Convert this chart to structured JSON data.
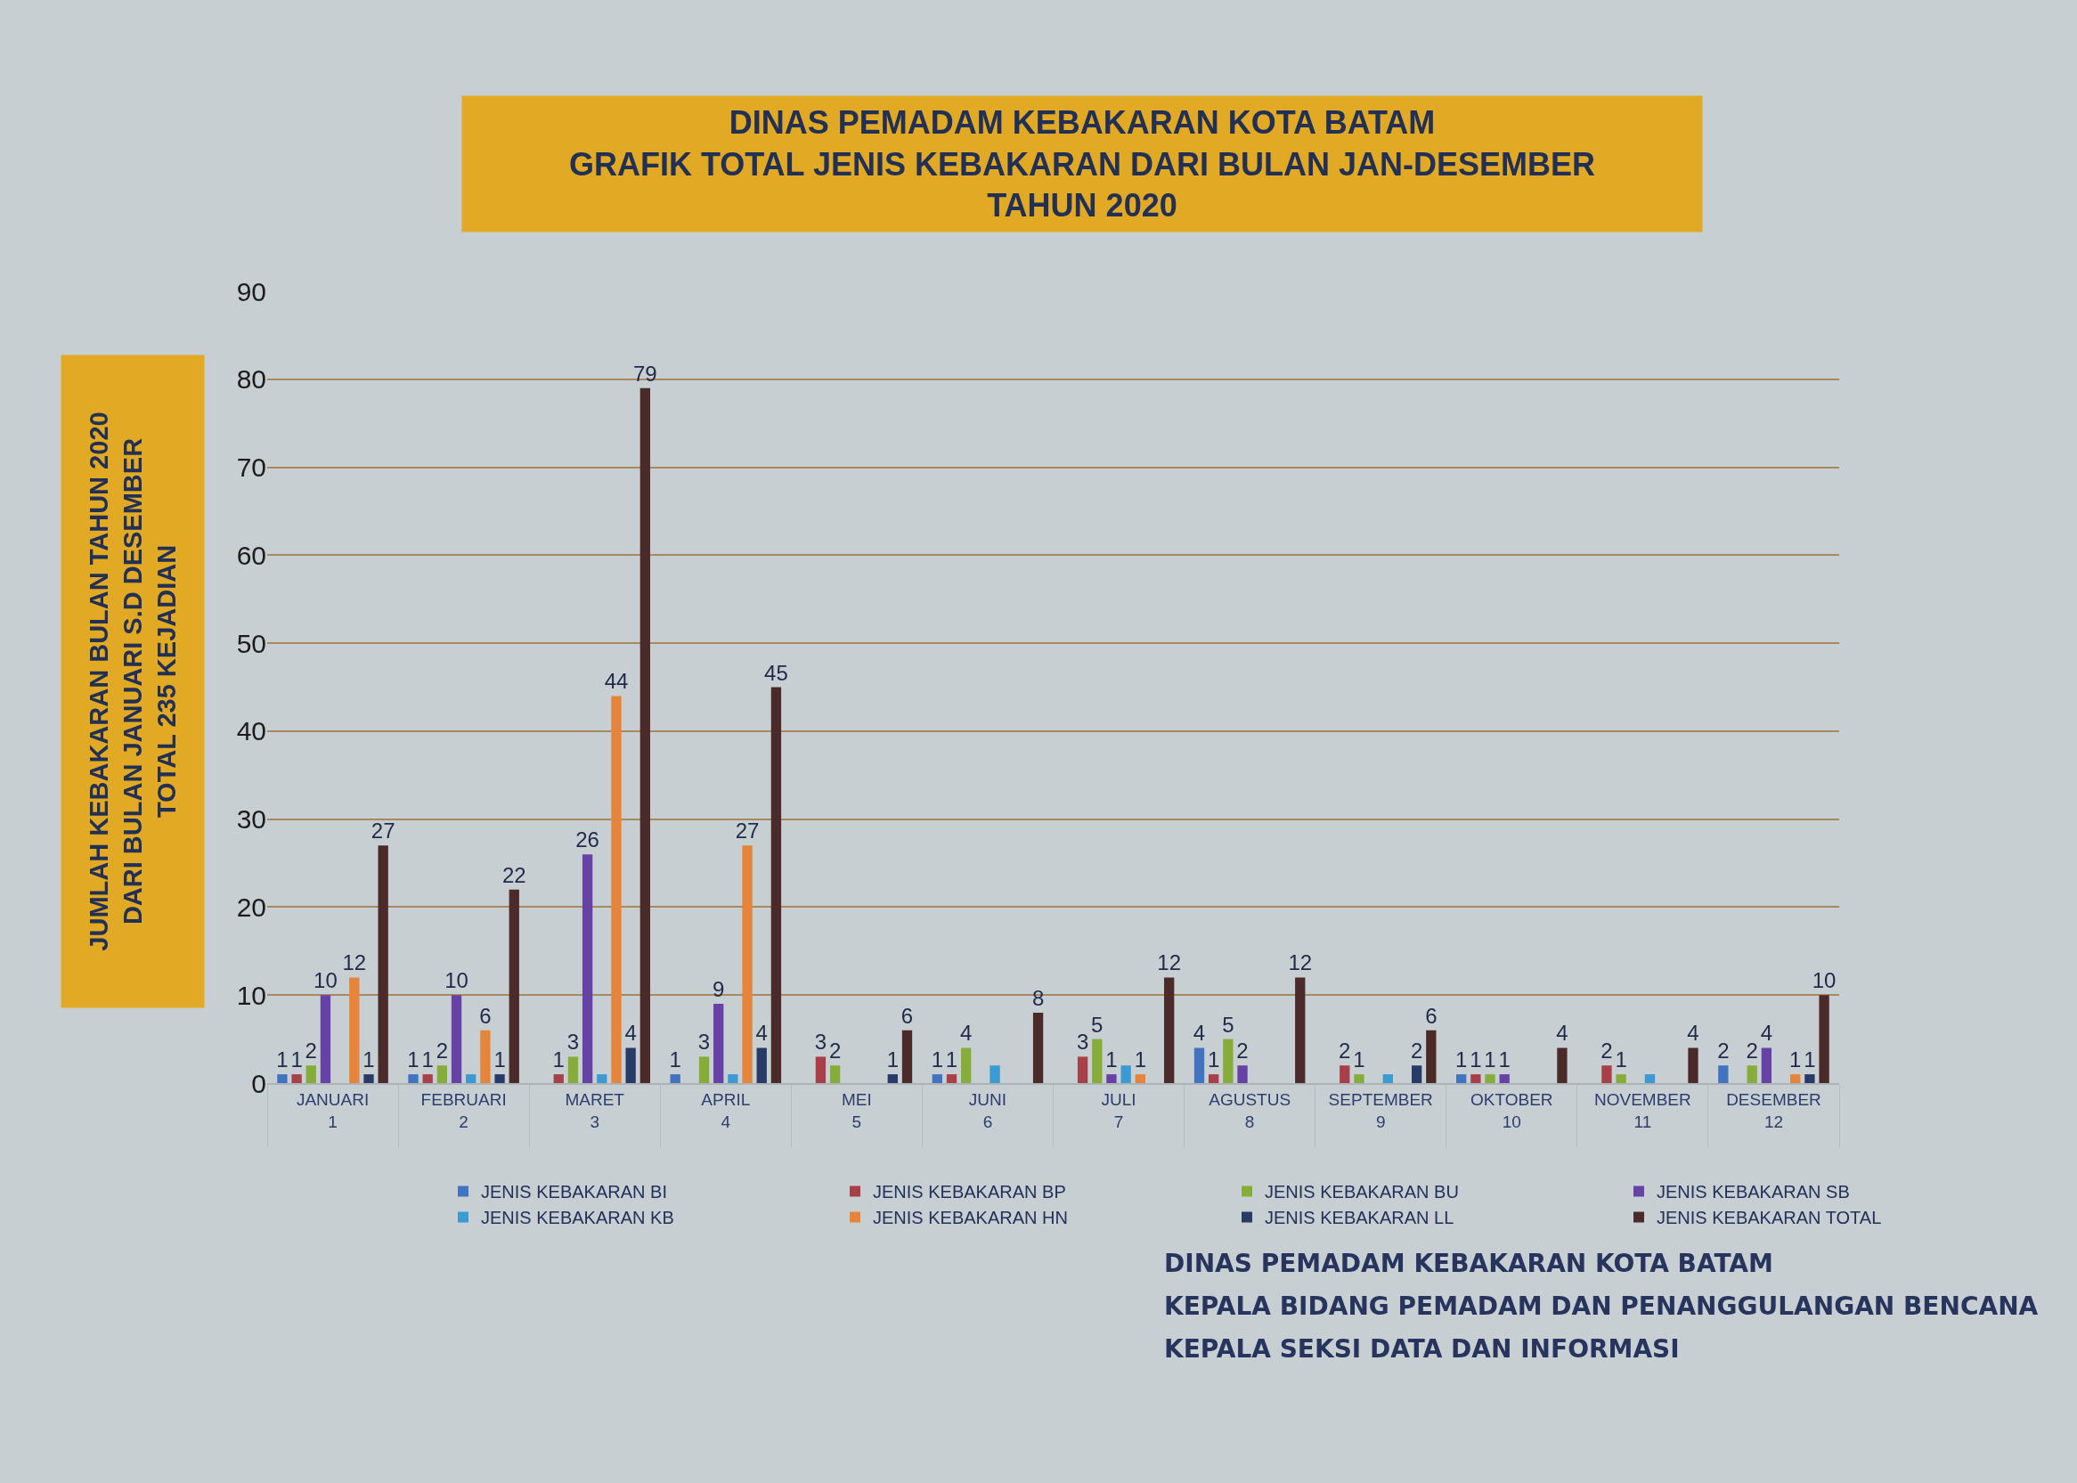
{
  "chart_data": {
    "type": "bar",
    "title": "DINAS PEMADAM KEBAKARAN KOTA BATAM\nGRAFIK TOTAL JENIS KEBAKARAN DARI BULAN JAN-DESEMBER\nTAHUN 2020",
    "ylabel": "JUMLAH KEBAKARAN BULAN TAHUN 2020\nDARI BULAN JANUARI S.D DESEMBER\nTOTAL 235 KEJADIAN",
    "categories": [
      "JANUARI\n1",
      "FEBRUARI\n2",
      "MARET\n3",
      "APRIL\n4",
      "MEI\n5",
      "JUNI\n6",
      "JULI\n7",
      "AGUSTUS\n8",
      "SEPTEMBER\n9",
      "OKTOBER\n10",
      "NOVEMBER\n11",
      "DESEMBER\n12"
    ],
    "series": [
      {
        "name": "JENIS KEBAKARAN BI",
        "color": "#4273c0",
        "values": [
          1,
          1,
          null,
          1,
          null,
          1,
          null,
          4,
          null,
          1,
          null,
          2
        ],
        "value_labels": [
          "1",
          "1",
          null,
          "1",
          null,
          "1",
          null,
          "4",
          null,
          "1",
          null,
          "2"
        ]
      },
      {
        "name": "JENIS KEBAKARAN BP",
        "color": "#a8404a",
        "values": [
          1,
          1,
          1,
          null,
          3,
          1,
          3,
          1,
          2,
          1,
          2,
          null
        ],
        "value_labels": [
          "1",
          "1",
          "1",
          null,
          "3",
          "1",
          "3",
          "1",
          "2",
          "1",
          "2",
          null
        ]
      },
      {
        "name": "JENIS KEBAKARAN BU",
        "color": "#86ad3a",
        "values": [
          2,
          2,
          3,
          3,
          2,
          4,
          5,
          5,
          1,
          1,
          1,
          2
        ],
        "value_labels": [
          "2",
          "2",
          "3",
          "3",
          "2",
          "4",
          "5",
          "5",
          "1",
          "1",
          "1",
          "2"
        ]
      },
      {
        "name": "JENIS KEBAKARAN SB",
        "color": "#6642a6",
        "values": [
          10,
          10,
          26,
          9,
          null,
          null,
          1,
          2,
          null,
          1,
          null,
          4
        ],
        "value_labels": [
          "10",
          "10",
          "26",
          "9",
          null,
          null,
          "1",
          "2",
          null,
          "1",
          null,
          "4"
        ]
      },
      {
        "name": "JENIS KEBAKARAN KB",
        "color": "#3c9ad2",
        "values": [
          null,
          1,
          1,
          1,
          null,
          2,
          2,
          null,
          1,
          null,
          1,
          null
        ],
        "value_labels": [
          null,
          null,
          null,
          null,
          null,
          null,
          null,
          null,
          null,
          null,
          null,
          null
        ]
      },
      {
        "name": "JENIS KEBAKARAN HN",
        "color": "#e5843a",
        "values": [
          12,
          6,
          44,
          27,
          null,
          null,
          1,
          null,
          null,
          null,
          null,
          1
        ],
        "value_labels": [
          "12",
          "6",
          "44",
          "27",
          null,
          null,
          "1",
          null,
          null,
          null,
          null,
          "1"
        ]
      },
      {
        "name": "JENIS KEBAKARAN LL",
        "color": "#283a66",
        "values": [
          1,
          1,
          4,
          4,
          1,
          null,
          null,
          null,
          2,
          null,
          null,
          1
        ],
        "value_labels": [
          "1",
          "1",
          "4",
          "4",
          "1",
          null,
          null,
          null,
          "2",
          null,
          null,
          "1"
        ]
      },
      {
        "name": "JENIS KEBAKARAN TOTAL",
        "color": "#4b2a2a",
        "values": [
          27,
          22,
          79,
          45,
          6,
          8,
          12,
          12,
          6,
          4,
          4,
          10
        ],
        "value_labels": [
          "27",
          "22",
          "79",
          "45",
          "6",
          "8",
          "12",
          "12",
          "6",
          "4",
          "4",
          "10"
        ]
      }
    ],
    "ylim": [
      0,
      90
    ],
    "yticks": [
      0,
      10,
      20,
      30,
      40,
      50,
      60,
      70,
      80,
      90
    ],
    "grid": "y",
    "legend": "bottom",
    "annotations": [
      "DINAS PEMADAM KEBAKARAN KOTA BATAM",
      "KEPALA BIDANG PEMADAM DAN PENANGGULANGAN BENCANA",
      "KEPALA SEKSI DATA DAN INFORMASI"
    ]
  }
}
